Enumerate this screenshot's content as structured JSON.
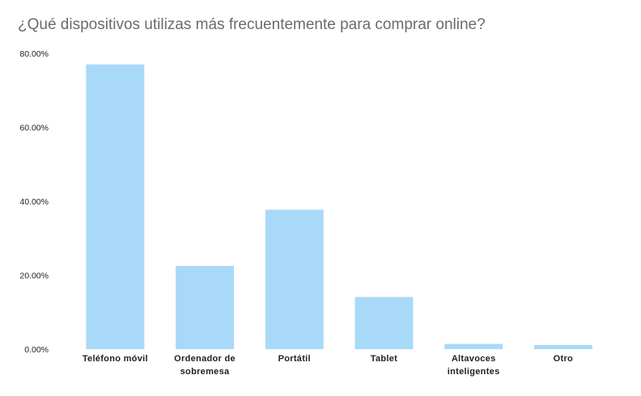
{
  "chart_data": {
    "type": "bar",
    "title": "¿Qué dispositivos utilizas más frecuentemente para comprar online?",
    "categories": [
      [
        "Teléfono móvil"
      ],
      [
        "Ordenador de",
        "sobremesa"
      ],
      [
        "Portátil"
      ],
      [
        "Tablet"
      ],
      [
        "Altavoces",
        "inteligentes"
      ],
      [
        "Otro"
      ]
    ],
    "values": [
      77.0,
      22.5,
      37.7,
      14.1,
      1.4,
      1.1
    ],
    "y_ticks": [
      "0.00%",
      "20.00%",
      "40.00%",
      "60.00%",
      "80.00%"
    ],
    "ylim": [
      0,
      80
    ],
    "bar_color": "#a9d9f8",
    "grid": false,
    "legend": "none"
  }
}
